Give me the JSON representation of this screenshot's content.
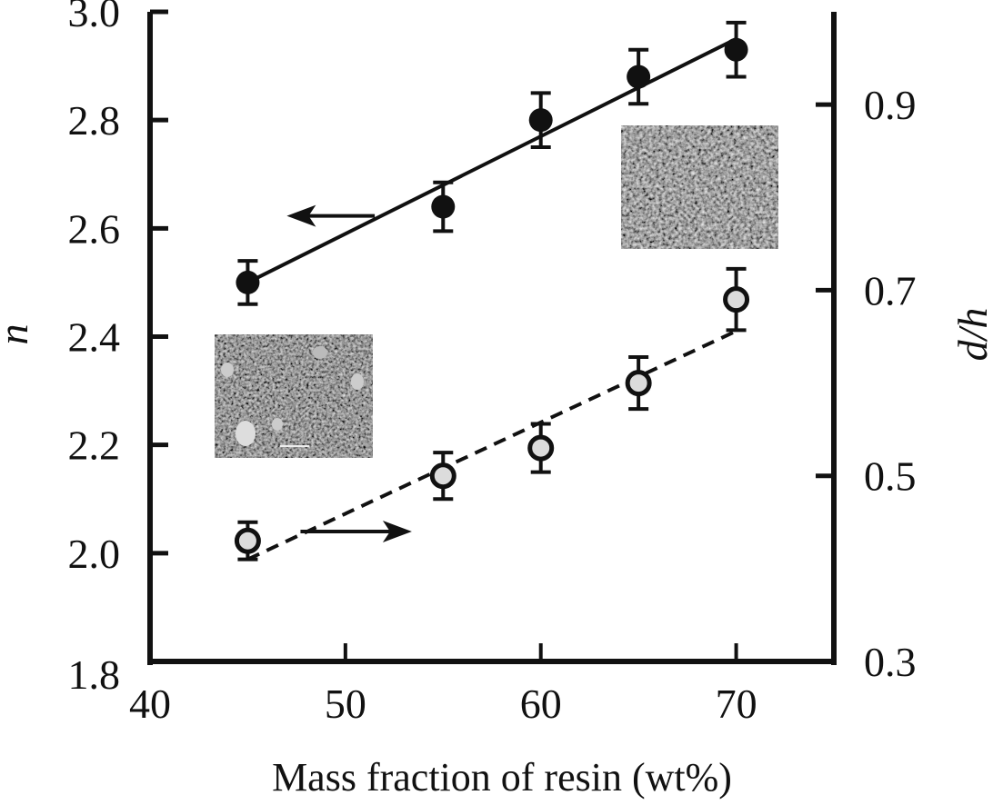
{
  "chart_data": {
    "type": "scatter",
    "title": "",
    "xlabel": "Mass fraction of resin (wt%)",
    "ylabel_left": "n",
    "ylabel_right": "d/h",
    "xlim": [
      40,
      75
    ],
    "ylim_left": [
      1.8,
      3.0
    ],
    "ylim_right": [
      0.3,
      1.0
    ],
    "x_ticks": [
      40,
      50,
      60,
      70
    ],
    "x_tick_labels": [
      "40",
      "50",
      "60",
      "70"
    ],
    "y_left_ticks": [
      1.8,
      2.0,
      2.2,
      2.4,
      2.6,
      2.8,
      3.0
    ],
    "y_left_tick_labels": [
      "1.8",
      "2.0",
      "2.2",
      "2.4",
      "2.6",
      "2.8",
      "3.0"
    ],
    "y_right_ticks": [
      0.3,
      0.5,
      0.7,
      0.9
    ],
    "y_right_tick_labels": [
      "0.3",
      "0.5",
      "0.7",
      "0.9"
    ],
    "grid": false,
    "series": [
      {
        "name": "n",
        "axis": "left",
        "marker": "filled-circle",
        "fit_line": "solid",
        "x": [
          45,
          55,
          60,
          65,
          70
        ],
        "values": [
          2.5,
          2.64,
          2.8,
          2.88,
          2.93
        ],
        "errors": [
          0.04,
          0.045,
          0.05,
          0.05,
          0.05
        ],
        "fit": {
          "x": [
            45,
            70
          ],
          "y": [
            2.5,
            2.95
          ]
        },
        "arrow_direction": "left"
      },
      {
        "name": "d/h",
        "axis": "right",
        "marker": "open-circle",
        "fit_line": "dashed",
        "x": [
          45,
          55,
          60,
          65,
          70
        ],
        "values": [
          0.43,
          0.5,
          0.53,
          0.6,
          0.69
        ],
        "errors": [
          0.02,
          0.025,
          0.026,
          0.028,
          0.033
        ],
        "fit": {
          "x": [
            45,
            70
          ],
          "y": [
            0.41,
            0.656
          ]
        },
        "arrow_direction": "right"
      }
    ],
    "annotations": [
      {
        "type": "arrow",
        "series": "n",
        "direction": "left",
        "note": "points to left axis"
      },
      {
        "type": "arrow",
        "series": "d/h",
        "direction": "right",
        "note": "points to right axis"
      },
      {
        "type": "inset-image",
        "description": "SEM micrograph (low resin fraction)",
        "location": "middle-left"
      },
      {
        "type": "inset-image",
        "description": "SEM micrograph (high resin fraction)",
        "location": "upper-right"
      }
    ],
    "colors": {
      "axis": "#111111",
      "filled_marker": "#111111",
      "open_marker_fill": "#dcdcdc",
      "inset": "#5a5a5a"
    }
  }
}
